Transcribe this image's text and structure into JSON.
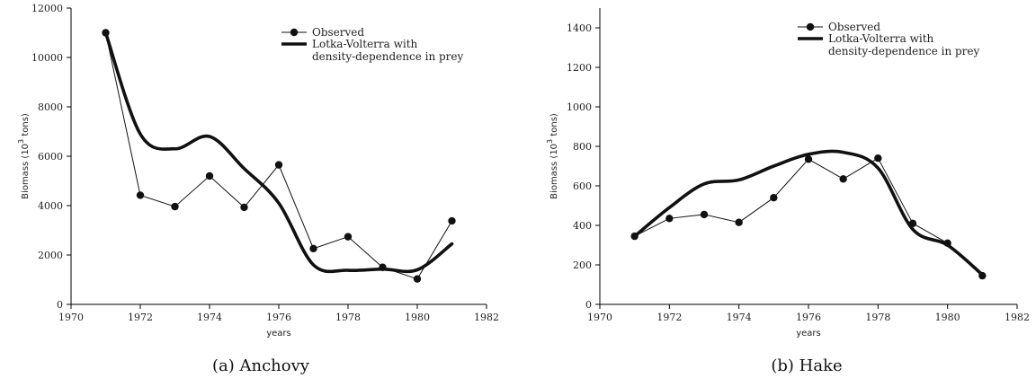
{
  "chart_data": [
    {
      "type": "line",
      "caption": "(a)  Anchovy",
      "xlabel": "years",
      "ylabel_main": "Biomass (10",
      "ylabel_sup": "3",
      "ylabel_tail": " tons)",
      "xlim": [
        1970,
        1982
      ],
      "ylim": [
        0,
        12000
      ],
      "xticks": [
        1970,
        1972,
        1974,
        1976,
        1978,
        1980,
        1982
      ],
      "yticks": [
        0,
        2000,
        4000,
        6000,
        8000,
        10000,
        12000
      ],
      "legend_position": "top-right",
      "series": [
        {
          "name": "Observed",
          "style": "line-with-markers",
          "x": [
            1971,
            1972,
            1973,
            1974,
            1975,
            1976,
            1977,
            1978,
            1979,
            1980,
            1981
          ],
          "y": [
            11000,
            4420,
            3960,
            5200,
            3930,
            5650,
            2260,
            2740,
            1500,
            1030,
            3380
          ]
        },
        {
          "name": "Lotka-Volterra with density-dependence in prey",
          "legend_lines": [
            "Lotka-Volterra with",
            "density-dependence in prey"
          ],
          "style": "thick-smooth-line",
          "x": [
            1971,
            1972,
            1973,
            1974,
            1975,
            1976,
            1977,
            1978,
            1979,
            1980,
            1981
          ],
          "y": [
            11000,
            6900,
            6300,
            6800,
            5500,
            4100,
            1600,
            1380,
            1430,
            1400,
            2450
          ]
        }
      ]
    },
    {
      "type": "line",
      "caption": "(b)  Hake",
      "xlabel": "years",
      "ylabel_main": "Biomass (10",
      "ylabel_sup": "3",
      "ylabel_tail": " tons)",
      "xlim": [
        1970,
        1982
      ],
      "ylim": [
        0,
        1500
      ],
      "xticks": [
        1970,
        1972,
        1974,
        1976,
        1978,
        1980,
        1982
      ],
      "yticks": [
        0,
        200,
        400,
        600,
        800,
        1000,
        1200,
        1400
      ],
      "legend_position": "top-right",
      "series": [
        {
          "name": "Observed",
          "style": "line-with-markers",
          "x": [
            1971,
            1972,
            1973,
            1974,
            1975,
            1976,
            1977,
            1978,
            1979,
            1980,
            1981
          ],
          "y": [
            345,
            435,
            455,
            415,
            540,
            735,
            635,
            740,
            410,
            310,
            145
          ]
        },
        {
          "name": "Lotka-Volterra with density-dependence in prey",
          "legend_lines": [
            "Lotka-Volterra with",
            "density-dependence in prey"
          ],
          "style": "thick-smooth-line",
          "x": [
            1971,
            1972,
            1973,
            1974,
            1975,
            1976,
            1977,
            1978,
            1979,
            1980,
            1981
          ],
          "y": [
            345,
            490,
            610,
            630,
            700,
            760,
            770,
            690,
            380,
            300,
            150
          ]
        }
      ]
    }
  ]
}
